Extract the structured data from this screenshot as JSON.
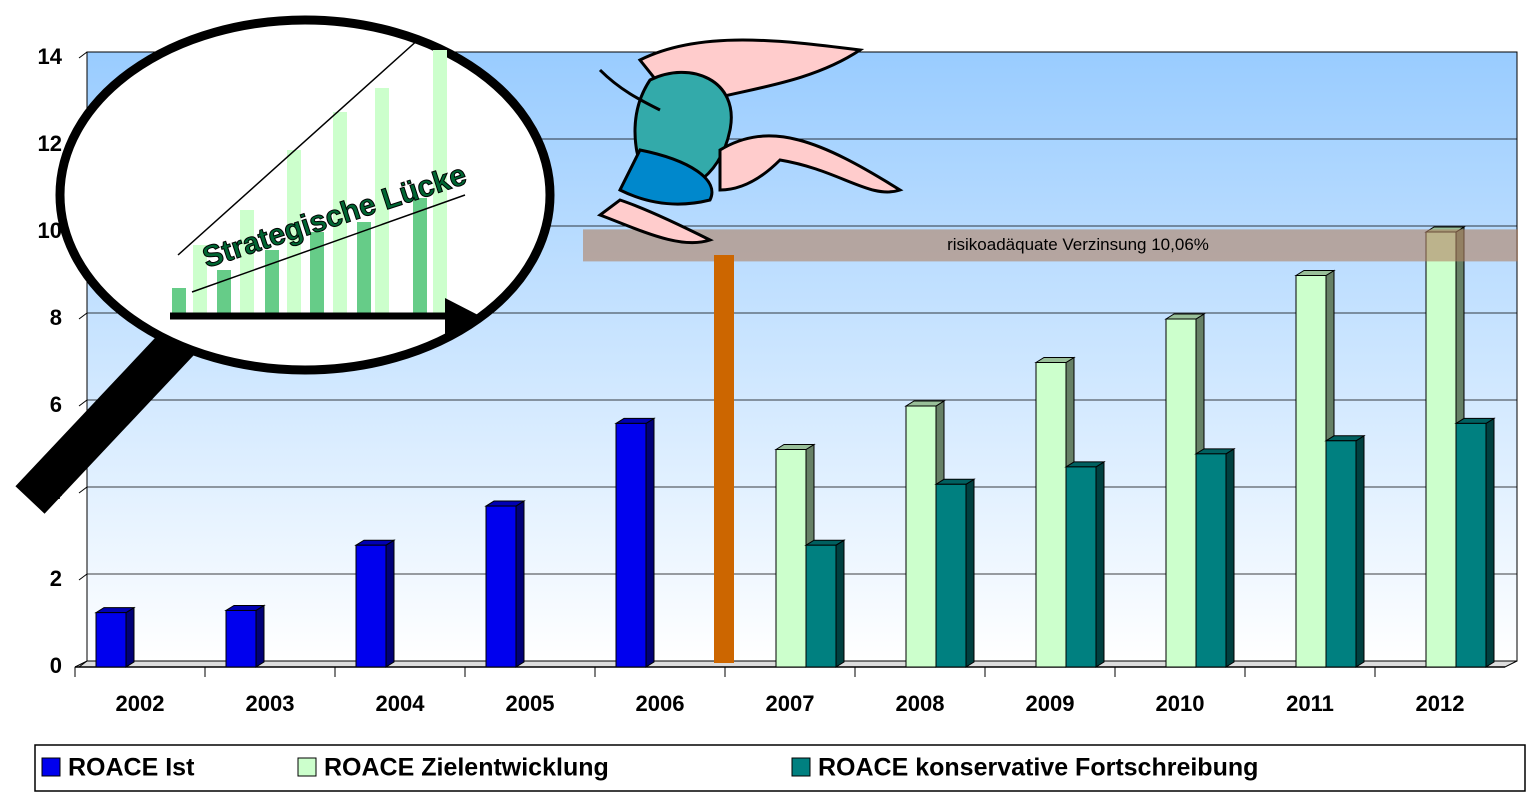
{
  "chart_data": {
    "type": "bar",
    "categories": [
      "2002",
      "2003",
      "2004",
      "2005",
      "2006",
      "2007",
      "2008",
      "2009",
      "2010",
      "2011",
      "2012"
    ],
    "series": [
      {
        "name": "ROACE Ist",
        "color": "#0000ee",
        "values": [
          1.25,
          1.3,
          2.8,
          3.7,
          5.6,
          null,
          null,
          null,
          null,
          null,
          null
        ]
      },
      {
        "name": "ROACE Zielentwicklung",
        "color": "#ccffcc",
        "values": [
          null,
          null,
          null,
          null,
          null,
          5.0,
          6.0,
          7.0,
          8.0,
          9.0,
          10.0
        ]
      },
      {
        "name": "ROACE konservative Fortschreibung",
        "color": "#008080",
        "values": [
          null,
          null,
          null,
          null,
          null,
          2.8,
          4.2,
          4.6,
          4.9,
          5.2,
          5.6
        ]
      }
    ],
    "ylim": [
      0,
      14
    ],
    "yticks": [
      0,
      2,
      4,
      6,
      8,
      10,
      12,
      14
    ],
    "grid": true,
    "legend": "bottom",
    "annotations": [
      {
        "text": "risikoadäquate Verzinsung 10,06%",
        "value": 10.06
      },
      {
        "text": "Strategische Lücke"
      }
    ]
  }
}
